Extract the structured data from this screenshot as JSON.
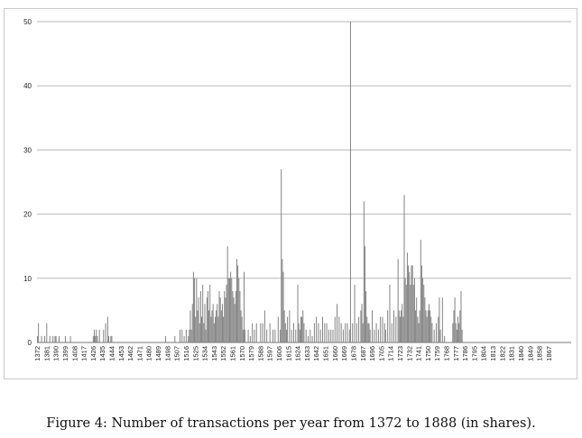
{
  "caption": "Figure 4: Number of transactions per year from 1372 to 1888 (in shares).",
  "chart_data": {
    "type": "bar",
    "title": "",
    "xlabel": "",
    "ylabel": "",
    "ylim": [
      0,
      50
    ],
    "yticks": [
      0,
      10,
      20,
      30,
      40,
      50
    ],
    "grid": "horizontal",
    "legend": "none",
    "bar_color": "#808080",
    "x_start": 1372,
    "x_end": 1888,
    "tick_labels": [
      "1372",
      "1381",
      "1390",
      "1399",
      "1408",
      "1417",
      "1426",
      "1435",
      "1444",
      "1453",
      "1462",
      "1471",
      "1480",
      "1489",
      "1498",
      "1507",
      "1516",
      "1525",
      "1534",
      "1543",
      "1552",
      "1561",
      "1570",
      "1579",
      "1588",
      "1597",
      "1606",
      "1615",
      "1624",
      "1633",
      "1642",
      "1651",
      "1660",
      "1669",
      "1678",
      "1687",
      "1696",
      "1705",
      "1714",
      "1723",
      "1732",
      "1741",
      "1750",
      "1759",
      "1768",
      "1777",
      "1786",
      "1795",
      "1804",
      "1813",
      "1822",
      "1831",
      "1840",
      "1849",
      "1858",
      "1867"
    ],
    "values": {
      "1372": 1,
      "1373": 3,
      "1376": 1,
      "1379": 1,
      "1381": 3,
      "1384": 1,
      "1387": 1,
      "1389": 1,
      "1390": 1,
      "1393": 1,
      "1399": 1,
      "1404": 1,
      "1426": 1,
      "1427": 2,
      "1428": 1,
      "1429": 2,
      "1430": 1,
      "1432": 2,
      "1436": 2,
      "1438": 3,
      "1440": 4,
      "1441": 1,
      "1443": 1,
      "1444": 1,
      "1496": 1,
      "1505": 1,
      "1510": 2,
      "1512": 2,
      "1514": 1,
      "1516": 2,
      "1518": 1,
      "1519": 2,
      "1520": 5,
      "1521": 2,
      "1522": 6,
      "1523": 11,
      "1524": 10,
      "1525": 4,
      "1526": 10,
      "1527": 5,
      "1528": 7,
      "1529": 3,
      "1530": 8,
      "1531": 4,
      "1532": 9,
      "1533": 3,
      "1534": 6,
      "1535": 2,
      "1536": 7,
      "1537": 8,
      "1538": 5,
      "1539": 9,
      "1540": 4,
      "1541": 5,
      "1542": 6,
      "1543": 3,
      "1544": 4,
      "1545": 5,
      "1546": 6,
      "1547": 4,
      "1548": 8,
      "1549": 7,
      "1550": 5,
      "1551": 6,
      "1552": 4,
      "1553": 8,
      "1554": 7,
      "1555": 9,
      "1556": 15,
      "1557": 10,
      "1558": 10,
      "1559": 11,
      "1560": 10,
      "1561": 8,
      "1562": 7,
      "1563": 6,
      "1564": 8,
      "1565": 13,
      "1566": 12,
      "1567": 10,
      "1568": 8,
      "1569": 5,
      "1570": 4,
      "1571": 2,
      "1572": 11,
      "1573": 2,
      "1576": 2,
      "1578": 1,
      "1580": 3,
      "1582": 2,
      "1584": 3,
      "1588": 3,
      "1590": 3,
      "1592": 5,
      "1594": 2,
      "1597": 3,
      "1600": 2,
      "1602": 2,
      "1605": 4,
      "1607": 2,
      "1608": 27,
      "1609": 13,
      "1610": 11,
      "1611": 5,
      "1612": 3,
      "1613": 2,
      "1614": 4,
      "1616": 5,
      "1618": 2,
      "1620": 3,
      "1622": 2,
      "1624": 9,
      "1625": 3,
      "1626": 2,
      "1627": 4,
      "1628": 4,
      "1629": 5,
      "1630": 3,
      "1632": 2,
      "1634": 1,
      "1636": 2,
      "1638": 1,
      "1640": 3,
      "1642": 4,
      "1644": 3,
      "1646": 2,
      "1648": 4,
      "1650": 3,
      "1652": 3,
      "1654": 2,
      "1656": 2,
      "1658": 2,
      "1660": 4,
      "1662": 6,
      "1664": 4,
      "1666": 3,
      "1668": 2,
      "1670": 3,
      "1672": 3,
      "1674": 2,
      "1675": 50,
      "1677": 3,
      "1679": 9,
      "1681": 3,
      "1683": 4,
      "1685": 5,
      "1686": 6,
      "1687": 3,
      "1688": 22,
      "1689": 15,
      "1690": 8,
      "1691": 4,
      "1692": 3,
      "1693": 3,
      "1694": 2,
      "1696": 5,
      "1698": 2,
      "1700": 3,
      "1702": 2,
      "1704": 4,
      "1706": 4,
      "1708": 3,
      "1709": 2,
      "1711": 5,
      "1713": 9,
      "1715": 3,
      "1717": 5,
      "1719": 4,
      "1721": 13,
      "1722": 5,
      "1723": 4,
      "1724": 5,
      "1725": 6,
      "1726": 4,
      "1727": 23,
      "1728": 10,
      "1729": 9,
      "1730": 14,
      "1731": 12,
      "1732": 11,
      "1733": 9,
      "1734": 12,
      "1735": 12,
      "1736": 9,
      "1737": 10,
      "1738": 5,
      "1739": 7,
      "1740": 4,
      "1741": 3,
      "1742": 5,
      "1743": 16,
      "1744": 12,
      "1745": 10,
      "1746": 9,
      "1747": 7,
      "1748": 5,
      "1749": 4,
      "1750": 5,
      "1751": 6,
      "1752": 5,
      "1753": 4,
      "1754": 3,
      "1756": 2,
      "1758": 3,
      "1760": 4,
      "1761": 7,
      "1762": 2,
      "1764": 7,
      "1766": 1,
      "1774": 3,
      "1775": 5,
      "1776": 7,
      "1777": 3,
      "1778": 2,
      "1779": 4,
      "1780": 3,
      "1781": 5,
      "1782": 8,
      "1783": 2
    }
  }
}
